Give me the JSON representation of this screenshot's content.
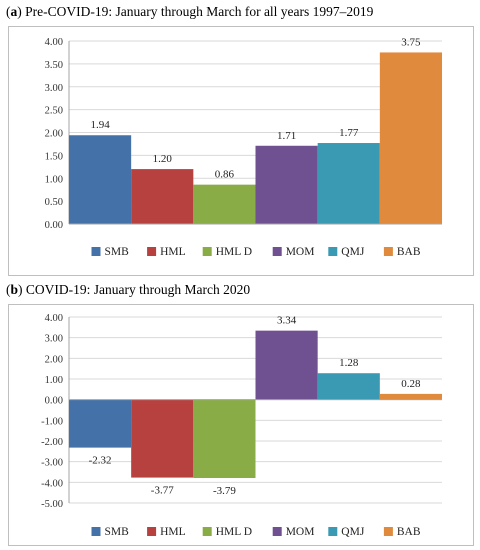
{
  "captions": [
    {
      "letter": "a",
      "text": " Pre-COVID-19: January through March for all years 1997–2019"
    },
    {
      "letter": "b",
      "text": " COVID-19: January through March 2020"
    }
  ],
  "colors": {
    "SMB": "#4472a8",
    "HML": "#b7413f",
    "HML D": "#8aac47",
    "MOM": "#6f5191",
    "QMJ": "#3a9ab3",
    "BAB": "#e08a3e",
    "grid": "#d9d9d9",
    "axis": "#a6a6a6"
  },
  "chart_data": [
    {
      "type": "bar",
      "title": "",
      "xlabel": "",
      "ylabel": "",
      "categories": [
        "SMB",
        "HML",
        "HML D",
        "MOM",
        "QMJ",
        "BAB"
      ],
      "values": [
        1.94,
        1.2,
        0.86,
        1.71,
        1.77,
        3.75
      ],
      "data_labels": [
        "1.94",
        "1.20",
        "0.86",
        "1.71",
        "1.77",
        "3.75"
      ],
      "ylim": [
        0,
        4
      ],
      "yticks": [
        "0.00",
        "0.50",
        "1.00",
        "1.50",
        "2.00",
        "2.50",
        "3.00",
        "3.50",
        "4.00"
      ],
      "grid": true,
      "legend_position": "bottom"
    },
    {
      "type": "bar",
      "title": "",
      "xlabel": "",
      "ylabel": "",
      "categories": [
        "SMB",
        "HML",
        "HML D",
        "MOM",
        "QMJ",
        "BAB"
      ],
      "values": [
        -2.32,
        -3.77,
        -3.79,
        3.34,
        1.28,
        0.28
      ],
      "data_labels": [
        "-2.32",
        "-3.77",
        "-3.79",
        "3.34",
        "1.28",
        "0.28"
      ],
      "ylim": [
        -5,
        4
      ],
      "yticks": [
        "-5.00",
        "-4.00",
        "-3.00",
        "-2.00",
        "-1.00",
        "0.00",
        "1.00",
        "2.00",
        "3.00",
        "4.00"
      ],
      "grid": true,
      "legend_position": "bottom"
    }
  ]
}
